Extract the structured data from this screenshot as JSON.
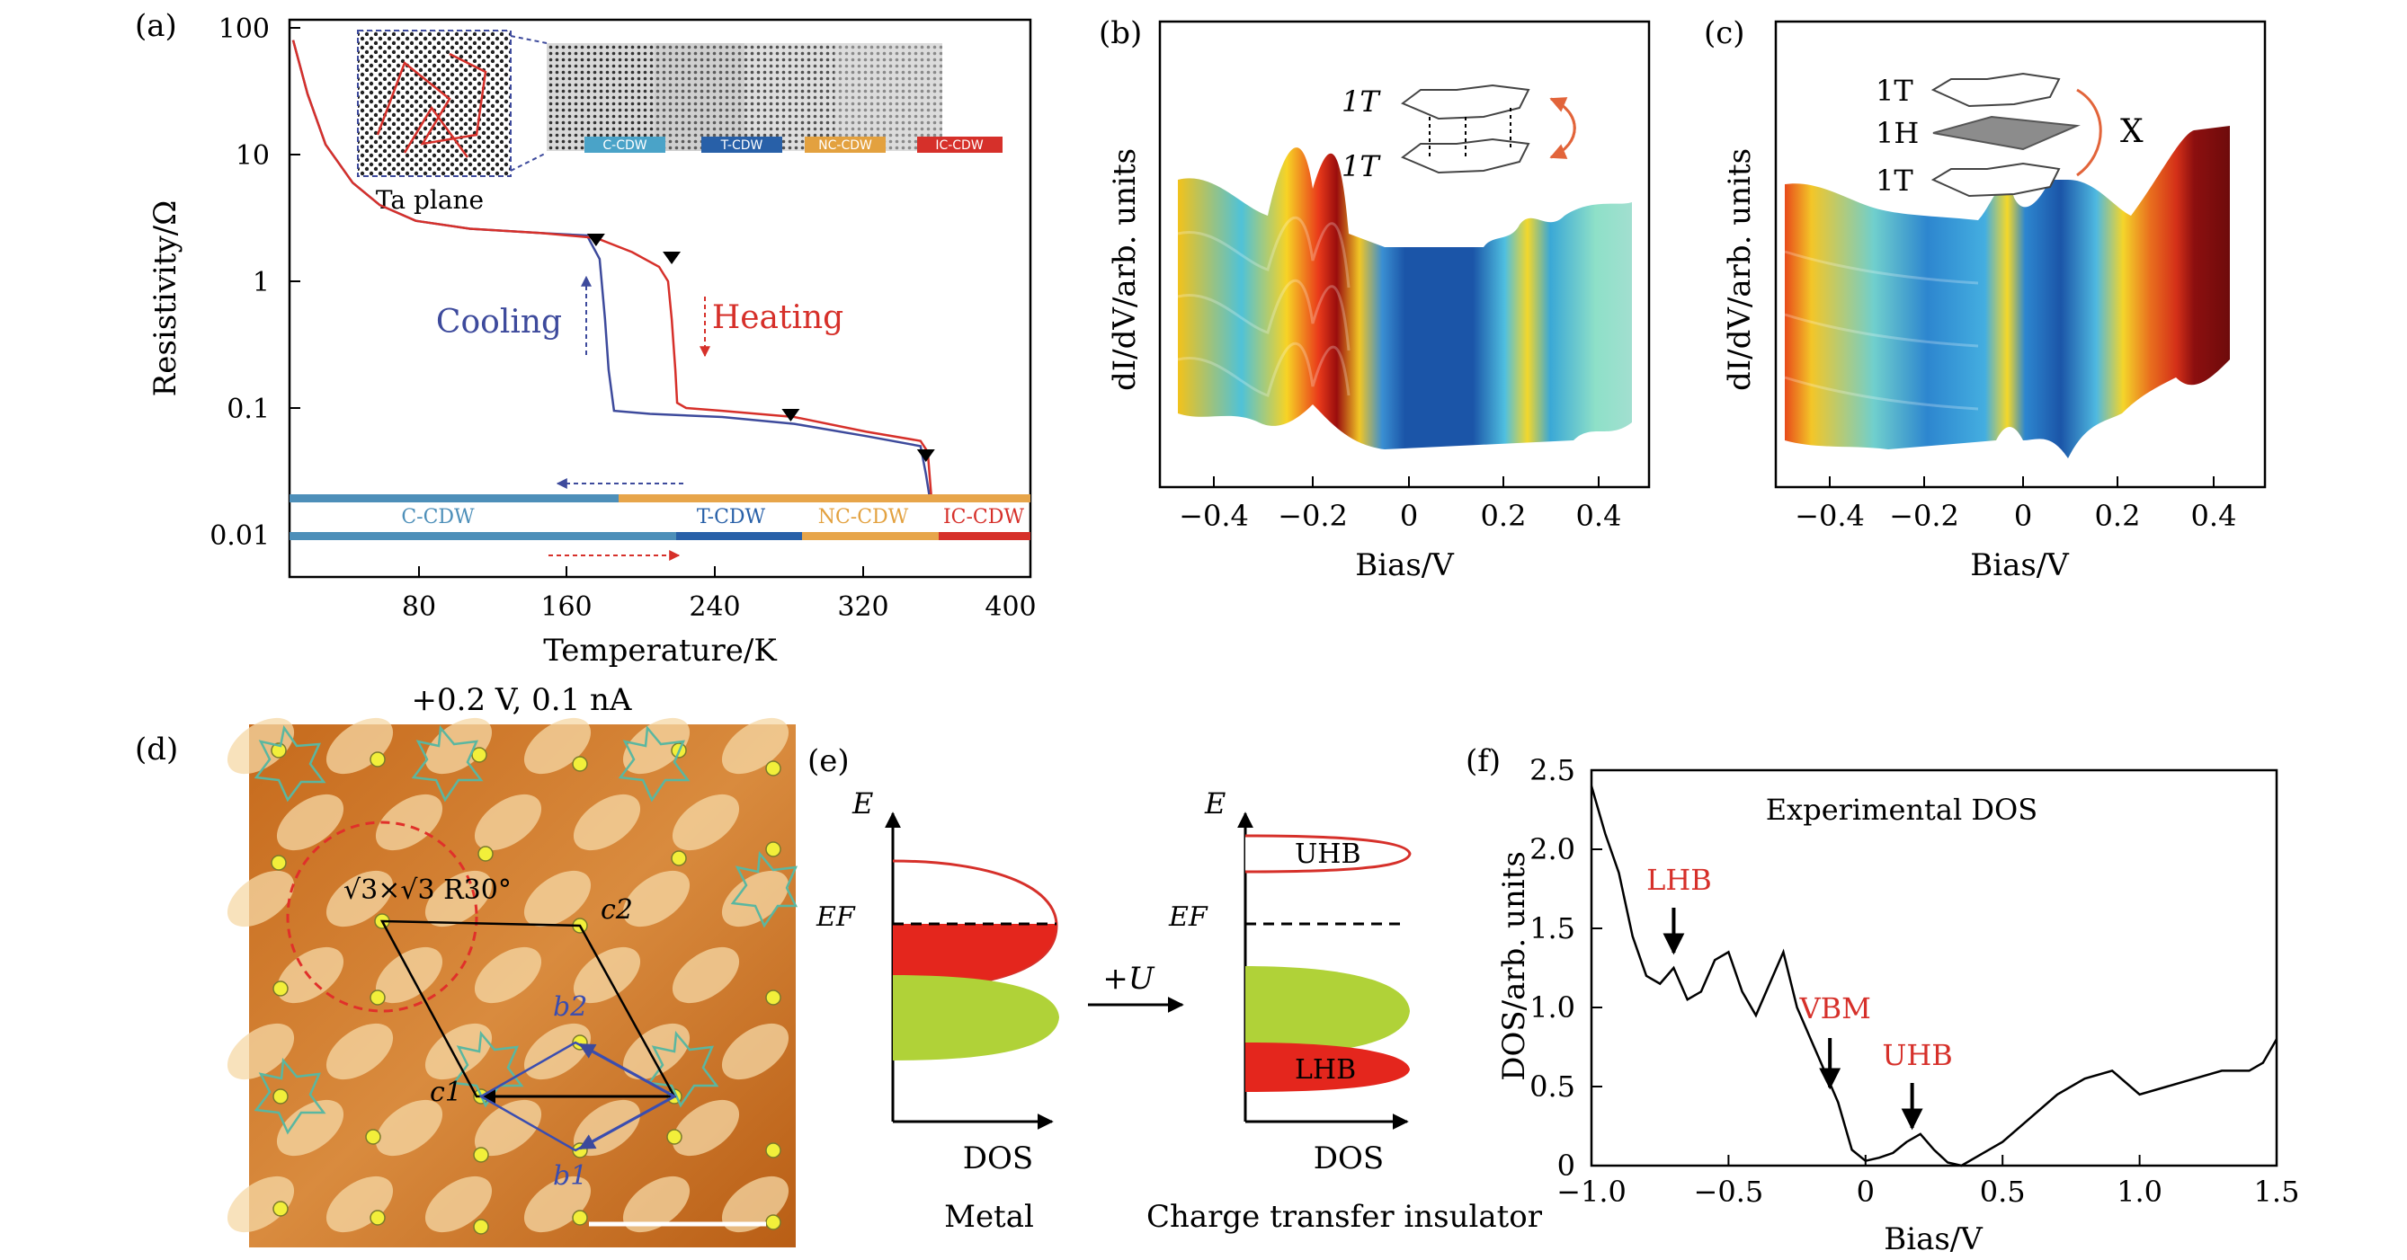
{
  "panels": {
    "a": {
      "label": "(a)",
      "cooling": "Cooling",
      "heating": "Heating",
      "inset_caption": "Ta plane",
      "bar_labels": [
        "C-CDW",
        "T-CDW",
        "NC-CDW",
        "IC-CDW"
      ],
      "chart_data": {
        "type": "line",
        "xlabel": "Temperature/K",
        "ylabel": "Resistivity/Ω",
        "xlim": [
          0,
          400
        ],
        "ylim": [
          0.005,
          100
        ],
        "yscale": "log",
        "xticks": [
          "80",
          "160",
          "240",
          "320",
          "400"
        ],
        "yticks": [
          "100",
          "10",
          "1",
          "0.1",
          "0.01"
        ],
        "series": [
          {
            "name": "Cooling",
            "color": "#3d4a9c",
            "x": [
              2,
              10,
              20,
              35,
              50,
              70,
              100,
              140,
              165,
              172,
              175,
              177,
              180,
              200,
              240,
              280,
              320,
              350,
              353,
              355,
              360,
              380
            ],
            "y": [
              80,
              30,
              12,
              6,
              4,
              3,
              2.6,
              2.4,
              2.3,
              1.5,
              0.5,
              0.2,
              0.095,
              0.09,
              0.085,
              0.075,
              0.06,
              0.05,
              0.03,
              0.02,
              0.02,
              0.02
            ]
          },
          {
            "name": "Heating",
            "color": "#d6302a",
            "x": [
              2,
              10,
              20,
              35,
              50,
              70,
              100,
              140,
              170,
              190,
              205,
              210,
              212,
              214,
              215,
              220,
              240,
              280,
              320,
              350,
              354,
              356,
              360,
              380
            ],
            "y": [
              80,
              30,
              12,
              6,
              4,
              3,
              2.6,
              2.4,
              2.2,
              1.7,
              1.3,
              1.0,
              0.5,
              0.2,
              0.11,
              0.1,
              0.095,
              0.085,
              0.065,
              0.055,
              0.045,
              0.02,
              0.02,
              0.02
            ]
          }
        ],
        "markers_T": [
          170,
          212,
          278,
          353
        ]
      }
    },
    "b": {
      "label": "(b)",
      "xlabel": "Bias/V",
      "ylabel": "dI/dV/arb. units",
      "xticks": [
        "−0.4",
        "−0.2",
        "0",
        "0.2",
        "0.4"
      ],
      "stack": [
        "1T",
        "1T"
      ]
    },
    "c": {
      "label": "(c)",
      "xlabel": "Bias/V",
      "ylabel": "dI/dV/arb. units",
      "xticks": [
        "−0.4",
        "−0.2",
        "0",
        "0.2",
        "0.4"
      ],
      "stack": [
        "1T",
        "1H",
        "1T"
      ],
      "cross": "X"
    },
    "d": {
      "label": "(d)",
      "title": "+0.2 V, 0.1 nA",
      "annotation": "√3×√3 R30°",
      "vectors": [
        "c2",
        "b2",
        "c1",
        "b1"
      ]
    },
    "e": {
      "label": "(e)",
      "axis_e": "E",
      "ef": "EF",
      "dos": "DOS",
      "arrow_label": "+U",
      "uhb": "UHB",
      "lhb": "LHB",
      "metal": "Metal",
      "insulator": "Charge transfer insulator"
    },
    "f": {
      "label": "(f)",
      "chart_data": {
        "type": "line",
        "title": "Experimental DOS",
        "xlabel": "Bias/V",
        "ylabel": "DOS/arb. units",
        "xlim": [
          -1.0,
          1.5
        ],
        "ylim": [
          0,
          2.5
        ],
        "xticks": [
          "−1.0",
          "−0.5",
          "0",
          "0.5",
          "1.0",
          "1.5"
        ],
        "yticks": [
          "0",
          "0.5",
          "1.0",
          "1.5",
          "2.0",
          "2.5"
        ],
        "x": [
          -1.0,
          -0.95,
          -0.9,
          -0.85,
          -0.8,
          -0.75,
          -0.7,
          -0.65,
          -0.6,
          -0.55,
          -0.5,
          -0.45,
          -0.4,
          -0.35,
          -0.3,
          -0.25,
          -0.2,
          -0.15,
          -0.1,
          -0.05,
          0.0,
          0.05,
          0.1,
          0.15,
          0.2,
          0.25,
          0.3,
          0.35,
          0.4,
          0.5,
          0.6,
          0.7,
          0.8,
          0.9,
          1.0,
          1.1,
          1.2,
          1.3,
          1.4,
          1.45,
          1.5
        ],
        "y": [
          2.4,
          2.1,
          1.85,
          1.45,
          1.2,
          1.15,
          1.25,
          1.05,
          1.1,
          1.3,
          1.35,
          1.1,
          0.95,
          1.15,
          1.35,
          1.0,
          0.8,
          0.6,
          0.4,
          0.1,
          0.03,
          0.05,
          0.08,
          0.15,
          0.2,
          0.1,
          0.02,
          0.0,
          0.05,
          0.15,
          0.3,
          0.45,
          0.55,
          0.6,
          0.45,
          0.5,
          0.55,
          0.6,
          0.6,
          0.65,
          0.8
        ],
        "annotations": [
          {
            "text": "LHB",
            "x": -0.7
          },
          {
            "text": "VBM",
            "x": -0.13
          },
          {
            "text": "UHB",
            "x": 0.17
          }
        ]
      }
    }
  }
}
